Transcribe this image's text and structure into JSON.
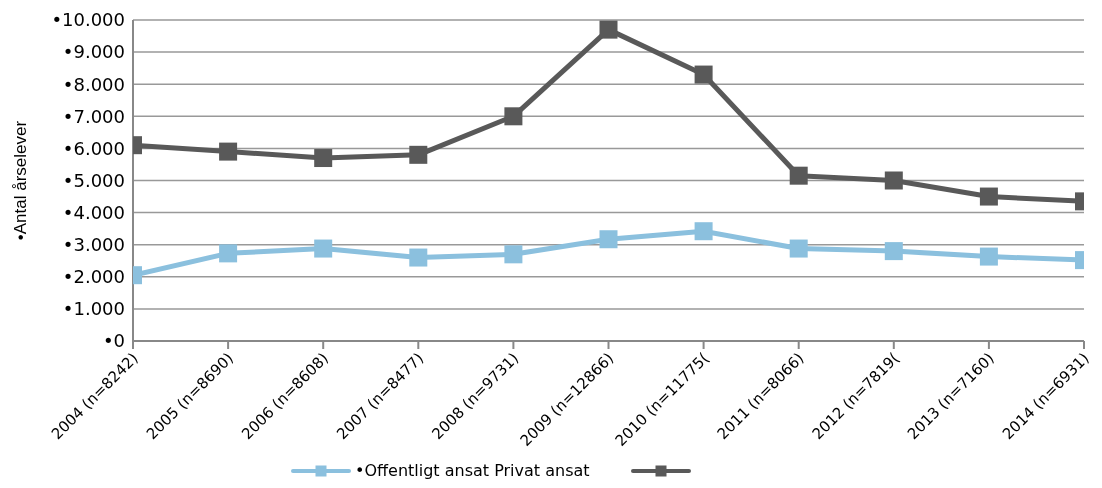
{
  "chart_data": {
    "type": "line",
    "ylabel": "•Antal årselever",
    "categories": [
      "2004 (n=8242)",
      "2005 (n=8690)",
      "2006 (n=8608)",
      "2007 (n=8477)",
      "2008 (n=9731)",
      "2009 (n=12866)",
      "2010 (n=11775(",
      "2011 (n=8066)",
      "2012 (n=7819(",
      "2013 (n=7160)",
      "2014 (n=6931)"
    ],
    "series": [
      {
        "name": "•Offentligt ansat Privat ansat",
        "color": "#8bc0de",
        "values": [
          2050,
          2730,
          2880,
          2600,
          2700,
          3170,
          3420,
          2880,
          2800,
          2630,
          2520
        ]
      },
      {
        "color": "#595959",
        "values": [
          6100,
          5900,
          5700,
          5800,
          7000,
          9700,
          8300,
          5150,
          5000,
          4500,
          4350
        ]
      }
    ],
    "ylim": [
      0,
      10000
    ],
    "yticks": [
      {
        "value": 0,
        "label": "•0"
      },
      {
        "value": 1000,
        "label": "•1.000"
      },
      {
        "value": 2000,
        "label": "•2.000"
      },
      {
        "value": 3000,
        "label": "•3.000"
      },
      {
        "value": 4000,
        "label": "•4.000"
      },
      {
        "value": 5000,
        "label": "•5.000"
      },
      {
        "value": 6000,
        "label": "•6.000"
      },
      {
        "value": 7000,
        "label": "•7.000"
      },
      {
        "value": 8000,
        "label": "•8.000"
      },
      {
        "value": 9000,
        "label": "•9.000"
      },
      {
        "value": 10000,
        "label": "•10.000"
      }
    ],
    "grid": "y",
    "legend": "bottom",
    "marker": "square",
    "line_style": "solid"
  }
}
